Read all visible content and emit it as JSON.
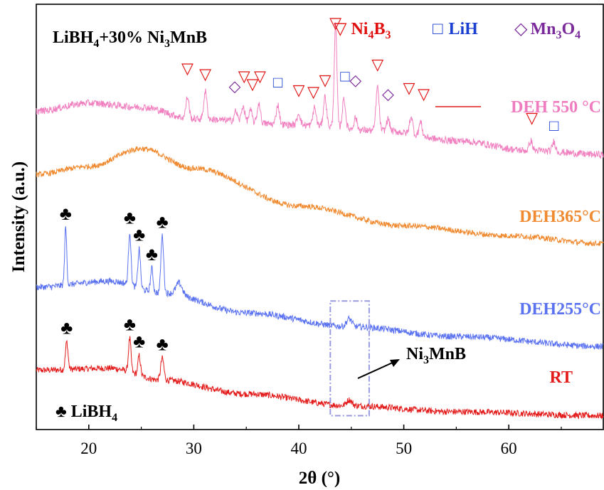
{
  "chart_data": {
    "type": "line",
    "title_parts": {
      "base": "LiBH",
      "sub1": "4",
      "mid": "+30% Ni",
      "sub2": "3",
      "tail": "MnB"
    },
    "xlabel": "2θ (°)",
    "ylabel": "Intensity (a.u.)",
    "xlim": [
      15,
      69
    ],
    "x_ticks": [
      20,
      30,
      40,
      50,
      60
    ],
    "y_ticks_shown": false,
    "grid": false,
    "legend": {
      "placement": "top-right",
      "entries": [
        {
          "symbol": "▽",
          "base": "Ni",
          "sub1": "4",
          "mid": "B",
          "sub2": "3",
          "color": "#e01010"
        },
        {
          "symbol": "□",
          "base": "LiH",
          "color": "#1a3fd1"
        },
        {
          "symbol": "◇",
          "base": "Mn",
          "sub1": "3",
          "mid": "O",
          "sub2": "4",
          "color": "#7a2a9a"
        }
      ]
    },
    "bottom_legend": {
      "symbol": "♣",
      "base": "LiBH",
      "sub1": "4"
    },
    "annotation": {
      "base": "Ni",
      "sub1": "3",
      "tail": "MnB",
      "x": 44.8
    },
    "series": [
      {
        "name": "RT",
        "color": "#e31b1b",
        "baseline": [
          [
            15,
            25
          ],
          [
            22,
            26
          ],
          [
            27,
            20
          ],
          [
            35,
            13
          ],
          [
            45,
            7
          ],
          [
            55,
            4
          ],
          [
            69,
            2
          ]
        ],
        "peaks": [
          [
            17.9,
            14,
            0.12
          ],
          [
            23.9,
            17,
            0.12
          ],
          [
            24.8,
            10,
            0.12
          ],
          [
            27.0,
            11,
            0.15
          ],
          [
            44.8,
            3,
            0.25
          ]
        ],
        "noise": 1.6,
        "markers": [
          {
            "symbol": "♣",
            "x": 17.9
          },
          {
            "symbol": "♣",
            "x": 23.9
          },
          {
            "symbol": "♣",
            "x": 24.8
          },
          {
            "symbol": "♣",
            "x": 27.0
          }
        ]
      },
      {
        "name": "DEH255°C",
        "color": "#5b72f0",
        "baseline": [
          [
            15,
            67
          ],
          [
            22,
            70
          ],
          [
            27,
            64
          ],
          [
            35,
            54
          ],
          [
            45,
            47
          ],
          [
            55,
            42
          ],
          [
            69,
            37
          ]
        ],
        "peaks": [
          [
            17.8,
            29,
            0.1
          ],
          [
            23.9,
            27,
            0.12
          ],
          [
            24.8,
            20,
            0.12
          ],
          [
            26.0,
            12,
            0.12
          ],
          [
            27.0,
            29,
            0.13
          ],
          [
            28.6,
            6,
            0.3
          ],
          [
            44.8,
            4,
            0.25
          ]
        ],
        "noise": 1.6,
        "markers": [
          {
            "symbol": "♣",
            "x": 17.8
          },
          {
            "symbol": "♣",
            "x": 23.9
          },
          {
            "symbol": "♣",
            "x": 24.8
          },
          {
            "symbol": "♣",
            "x": 26.0
          },
          {
            "symbol": "♣",
            "x": 27.0
          }
        ]
      },
      {
        "name": "DEH365°C",
        "color": "#f08a30",
        "baseline": [
          [
            15,
            124
          ],
          [
            20,
            128
          ],
          [
            25,
            137
          ],
          [
            30,
            127
          ],
          [
            40,
            108
          ],
          [
            50,
            98
          ],
          [
            60,
            93
          ],
          [
            69,
            89
          ]
        ],
        "peaks": [],
        "noise": 1.4,
        "markers": []
      },
      {
        "name": "DEH 550 °C",
        "color": "#f080c0",
        "baseline": [
          [
            15,
            156
          ],
          [
            20,
            160
          ],
          [
            25,
            158
          ],
          [
            30,
            152
          ],
          [
            40,
            149
          ],
          [
            48,
            146
          ],
          [
            55,
            141
          ],
          [
            62,
            136
          ],
          [
            69,
            134
          ]
        ],
        "peaks": [
          [
            29.4,
            11,
            0.15
          ],
          [
            31.1,
            14,
            0.15
          ],
          [
            34.0,
            5,
            0.15
          ],
          [
            34.7,
            8,
            0.15
          ],
          [
            35.4,
            6,
            0.15
          ],
          [
            36.2,
            10,
            0.15
          ],
          [
            38.0,
            10,
            0.15
          ],
          [
            40.0,
            6,
            0.15
          ],
          [
            41.5,
            9,
            0.15
          ],
          [
            42.5,
            15,
            0.15
          ],
          [
            43.5,
            52,
            0.13
          ],
          [
            44.3,
            15,
            0.15
          ],
          [
            45.4,
            6,
            0.15
          ],
          [
            47.5,
            22,
            0.15
          ],
          [
            48.5,
            6,
            0.15
          ],
          [
            50.7,
            9,
            0.15
          ],
          [
            51.6,
            7,
            0.15
          ],
          [
            62.1,
            5,
            0.15
          ],
          [
            64.3,
            5,
            0.15
          ]
        ],
        "noise": 1.8,
        "markers": [
          {
            "symbol": "▽",
            "x": 29.4,
            "y": 175,
            "color": "#e01010"
          },
          {
            "symbol": "▽",
            "x": 31.1,
            "y": 172,
            "color": "#e01010"
          },
          {
            "symbol": "◇",
            "x": 33.9,
            "y": 166,
            "color": "#7a2a9a"
          },
          {
            "symbol": "▽",
            "x": 34.8,
            "y": 171,
            "color": "#e01010"
          },
          {
            "symbol": "▽",
            "x": 35.6,
            "y": 167,
            "color": "#e01010"
          },
          {
            "symbol": "▽",
            "x": 36.3,
            "y": 171,
            "color": "#e01010"
          },
          {
            "symbol": "□",
            "x": 38.0,
            "y": 168,
            "color": "#1a3fd1"
          },
          {
            "symbol": "▽",
            "x": 40.0,
            "y": 164,
            "color": "#e01010"
          },
          {
            "symbol": "▽",
            "x": 41.4,
            "y": 163,
            "color": "#e01010"
          },
          {
            "symbol": "▽",
            "x": 42.5,
            "y": 169,
            "color": "#e01010"
          },
          {
            "symbol": "▽",
            "x": 43.5,
            "y": 198,
            "color": "#e01010"
          },
          {
            "symbol": "□",
            "x": 44.4,
            "y": 171,
            "color": "#1a3fd1"
          },
          {
            "symbol": "◇",
            "x": 45.4,
            "y": 169,
            "color": "#7a2a9a"
          },
          {
            "symbol": "▽",
            "x": 47.5,
            "y": 177,
            "color": "#e01010"
          },
          {
            "symbol": "◇",
            "x": 48.5,
            "y": 162,
            "color": "#7a2a9a"
          },
          {
            "symbol": "▽",
            "x": 50.5,
            "y": 165,
            "color": "#e01010"
          },
          {
            "symbol": "▽",
            "x": 51.9,
            "y": 162,
            "color": "#e01010"
          },
          {
            "symbol": "▽",
            "x": 62.2,
            "y": 150,
            "color": "#e01010"
          },
          {
            "symbol": "□",
            "x": 64.3,
            "y": 146,
            "color": "#1a3fd1"
          }
        ]
      }
    ],
    "highlight_box": {
      "x0": 43.0,
      "x1": 46.7,
      "y0": 2,
      "y1": 60,
      "color": "#9a9ae0"
    }
  }
}
